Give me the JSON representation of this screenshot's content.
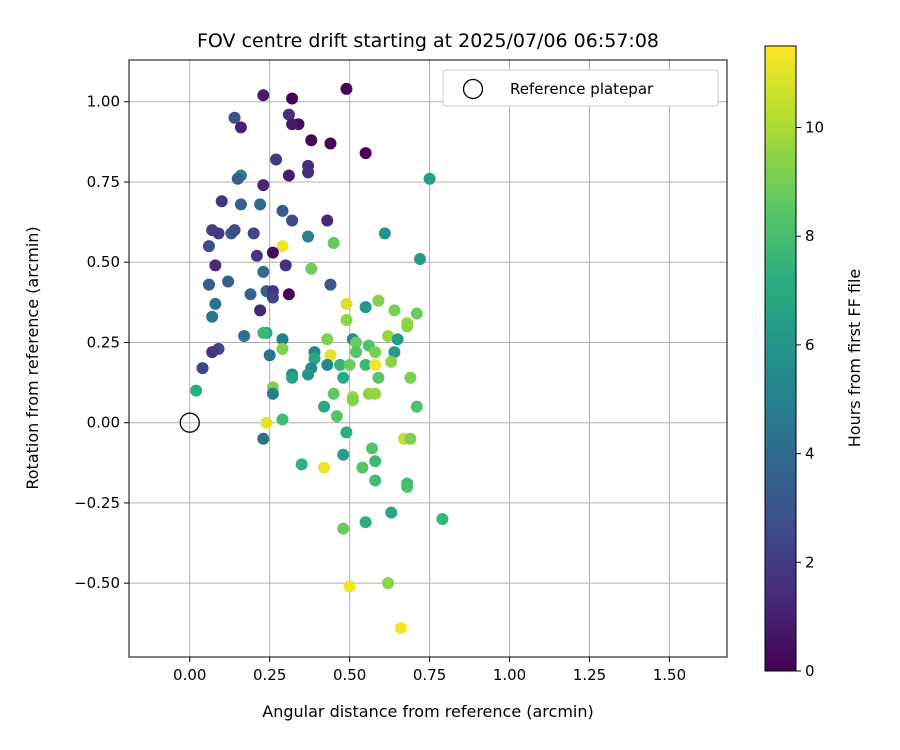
{
  "chart_data": {
    "type": "scatter",
    "title": "FOV centre drift starting at 2025/07/06 06:57:08",
    "xlabel": "Angular distance from reference (arcmin)",
    "ylabel": "Rotation from reference (arcmin)",
    "xlim": [
      -0.19,
      1.68
    ],
    "ylim": [
      -0.73,
      1.13
    ],
    "xticks": [
      0.0,
      0.25,
      0.5,
      0.75,
      1.0,
      1.25,
      1.5
    ],
    "xtick_labels": [
      "0.00",
      "0.25",
      "0.50",
      "0.75",
      "1.00",
      "1.25",
      "1.50"
    ],
    "yticks": [
      -0.5,
      -0.25,
      0.0,
      0.25,
      0.5,
      0.75,
      1.0
    ],
    "ytick_labels": [
      "−0.50",
      "−0.25",
      "0.00",
      "0.25",
      "0.50",
      "0.75",
      "1.00"
    ],
    "grid": true,
    "colormap": "viridis",
    "colorbar": {
      "label": "Hours from first FF file",
      "range": [
        0,
        11.5
      ],
      "ticks": [
        0,
        2,
        4,
        6,
        8,
        10
      ],
      "tick_labels": [
        "0",
        "2",
        "4",
        "6",
        "8",
        "10"
      ]
    },
    "legend": {
      "position": "top-right",
      "entries": [
        "Reference platepar"
      ]
    },
    "reference_point": {
      "x": 0.0,
      "y": 0.0,
      "label": "Reference platepar"
    },
    "points": [
      {
        "x": 0.23,
        "y": 1.02,
        "c": 0.9
      },
      {
        "x": 0.32,
        "y": 1.01,
        "c": 0.1
      },
      {
        "x": 0.49,
        "y": 1.04,
        "c": 0.2
      },
      {
        "x": 0.14,
        "y": 0.95,
        "c": 2.8
      },
      {
        "x": 0.31,
        "y": 0.96,
        "c": 1.6
      },
      {
        "x": 0.34,
        "y": 0.93,
        "c": 0.4
      },
      {
        "x": 0.32,
        "y": 0.93,
        "c": 0.8
      },
      {
        "x": 0.16,
        "y": 0.92,
        "c": 1.1
      },
      {
        "x": 0.38,
        "y": 0.88,
        "c": 0.2
      },
      {
        "x": 0.44,
        "y": 0.87,
        "c": 0.1
      },
      {
        "x": 0.55,
        "y": 0.84,
        "c": 0.1
      },
      {
        "x": 0.27,
        "y": 0.82,
        "c": 2.0
      },
      {
        "x": 0.37,
        "y": 0.8,
        "c": 1.4
      },
      {
        "x": 0.37,
        "y": 0.78,
        "c": 1.5
      },
      {
        "x": 0.16,
        "y": 0.77,
        "c": 5.2
      },
      {
        "x": 0.15,
        "y": 0.76,
        "c": 3.4
      },
      {
        "x": 0.31,
        "y": 0.77,
        "c": 0.9
      },
      {
        "x": 0.23,
        "y": 0.74,
        "c": 1.2
      },
      {
        "x": 0.75,
        "y": 0.76,
        "c": 6.5
      },
      {
        "x": 0.1,
        "y": 0.69,
        "c": 1.7
      },
      {
        "x": 0.16,
        "y": 0.68,
        "c": 3.6
      },
      {
        "x": 0.22,
        "y": 0.68,
        "c": 3.9
      },
      {
        "x": 0.29,
        "y": 0.66,
        "c": 3.2
      },
      {
        "x": 0.32,
        "y": 0.63,
        "c": 2.6
      },
      {
        "x": 0.43,
        "y": 0.63,
        "c": 1.3
      },
      {
        "x": 0.07,
        "y": 0.6,
        "c": 2.2
      },
      {
        "x": 0.09,
        "y": 0.59,
        "c": 2.0
      },
      {
        "x": 0.13,
        "y": 0.59,
        "c": 3.1
      },
      {
        "x": 0.14,
        "y": 0.6,
        "c": 2.6
      },
      {
        "x": 0.2,
        "y": 0.59,
        "c": 2.4
      },
      {
        "x": 0.37,
        "y": 0.58,
        "c": 4.9
      },
      {
        "x": 0.45,
        "y": 0.56,
        "c": 8.7
      },
      {
        "x": 0.61,
        "y": 0.59,
        "c": 5.9
      },
      {
        "x": 0.06,
        "y": 0.55,
        "c": 2.7
      },
      {
        "x": 0.29,
        "y": 0.55,
        "c": 11.3
      },
      {
        "x": 0.26,
        "y": 0.53,
        "c": 0.3
      },
      {
        "x": 0.21,
        "y": 0.52,
        "c": 1.8
      },
      {
        "x": 0.3,
        "y": 0.49,
        "c": 1.5
      },
      {
        "x": 0.08,
        "y": 0.49,
        "c": 1.4
      },
      {
        "x": 0.23,
        "y": 0.47,
        "c": 4.1
      },
      {
        "x": 0.38,
        "y": 0.48,
        "c": 8.9
      },
      {
        "x": 0.72,
        "y": 0.51,
        "c": 6.3
      },
      {
        "x": 0.12,
        "y": 0.44,
        "c": 3.4
      },
      {
        "x": 0.06,
        "y": 0.43,
        "c": 3.4
      },
      {
        "x": 0.44,
        "y": 0.43,
        "c": 3.1
      },
      {
        "x": 0.24,
        "y": 0.41,
        "c": 3.5
      },
      {
        "x": 0.26,
        "y": 0.41,
        "c": 1.8
      },
      {
        "x": 0.26,
        "y": 0.39,
        "c": 2.2
      },
      {
        "x": 0.31,
        "y": 0.4,
        "c": 0.2
      },
      {
        "x": 0.19,
        "y": 0.4,
        "c": 3.7
      },
      {
        "x": 0.49,
        "y": 0.37,
        "c": 10.8
      },
      {
        "x": 0.59,
        "y": 0.38,
        "c": 9.3
      },
      {
        "x": 0.08,
        "y": 0.37,
        "c": 4.3
      },
      {
        "x": 0.22,
        "y": 0.35,
        "c": 1.2
      },
      {
        "x": 0.55,
        "y": 0.36,
        "c": 6.2
      },
      {
        "x": 0.64,
        "y": 0.35,
        "c": 9.1
      },
      {
        "x": 0.71,
        "y": 0.34,
        "c": 8.8
      },
      {
        "x": 0.07,
        "y": 0.33,
        "c": 4.5
      },
      {
        "x": 0.49,
        "y": 0.32,
        "c": 9.5
      },
      {
        "x": 0.68,
        "y": 0.31,
        "c": 9.6
      },
      {
        "x": 0.68,
        "y": 0.3,
        "c": 9.4
      },
      {
        "x": 0.17,
        "y": 0.27,
        "c": 4.4
      },
      {
        "x": 0.24,
        "y": 0.28,
        "c": 6.8
      },
      {
        "x": 0.23,
        "y": 0.28,
        "c": 7.7
      },
      {
        "x": 0.29,
        "y": 0.26,
        "c": 5.0
      },
      {
        "x": 0.43,
        "y": 0.26,
        "c": 9.2
      },
      {
        "x": 0.51,
        "y": 0.26,
        "c": 5.4
      },
      {
        "x": 0.52,
        "y": 0.25,
        "c": 8.8
      },
      {
        "x": 0.62,
        "y": 0.27,
        "c": 9.7
      },
      {
        "x": 0.65,
        "y": 0.26,
        "c": 6.3
      },
      {
        "x": 0.56,
        "y": 0.24,
        "c": 8.2
      },
      {
        "x": 0.29,
        "y": 0.23,
        "c": 9.3
      },
      {
        "x": 0.52,
        "y": 0.22,
        "c": 8.4
      },
      {
        "x": 0.58,
        "y": 0.22,
        "c": 9.1
      },
      {
        "x": 0.64,
        "y": 0.22,
        "c": 6.3
      },
      {
        "x": 0.09,
        "y": 0.23,
        "c": 2.5
      },
      {
        "x": 0.07,
        "y": 0.22,
        "c": 1.8
      },
      {
        "x": 0.25,
        "y": 0.21,
        "c": 4.2
      },
      {
        "x": 0.39,
        "y": 0.22,
        "c": 5.4
      },
      {
        "x": 0.39,
        "y": 0.2,
        "c": 6.8
      },
      {
        "x": 0.44,
        "y": 0.21,
        "c": 11.1
      },
      {
        "x": 0.47,
        "y": 0.18,
        "c": 7.5
      },
      {
        "x": 0.5,
        "y": 0.18,
        "c": 8.9
      },
      {
        "x": 0.55,
        "y": 0.18,
        "c": 7.7
      },
      {
        "x": 0.43,
        "y": 0.18,
        "c": 5.4
      },
      {
        "x": 0.58,
        "y": 0.18,
        "c": 11.3
      },
      {
        "x": 0.63,
        "y": 0.19,
        "c": 9.4
      },
      {
        "x": 0.04,
        "y": 0.17,
        "c": 2.4
      },
      {
        "x": 0.38,
        "y": 0.17,
        "c": 5.6
      },
      {
        "x": 0.37,
        "y": 0.15,
        "c": 5.9
      },
      {
        "x": 0.32,
        "y": 0.15,
        "c": 5.1
      },
      {
        "x": 0.32,
        "y": 0.14,
        "c": 6.6
      },
      {
        "x": 0.48,
        "y": 0.14,
        "c": 7.0
      },
      {
        "x": 0.59,
        "y": 0.14,
        "c": 8.4
      },
      {
        "x": 0.69,
        "y": 0.14,
        "c": 9.1
      },
      {
        "x": 0.26,
        "y": 0.11,
        "c": 9.2
      },
      {
        "x": 0.26,
        "y": 0.09,
        "c": 4.8
      },
      {
        "x": 0.02,
        "y": 0.1,
        "c": 7.2
      },
      {
        "x": 0.45,
        "y": 0.09,
        "c": 8.6
      },
      {
        "x": 0.56,
        "y": 0.09,
        "c": 9.5
      },
      {
        "x": 0.58,
        "y": 0.09,
        "c": 9.6
      },
      {
        "x": 0.51,
        "y": 0.08,
        "c": 9.9
      },
      {
        "x": 0.51,
        "y": 0.07,
        "c": 9.2
      },
      {
        "x": 0.42,
        "y": 0.05,
        "c": 7.0
      },
      {
        "x": 0.71,
        "y": 0.05,
        "c": 8.2
      },
      {
        "x": 0.46,
        "y": 0.02,
        "c": 8.3
      },
      {
        "x": 0.29,
        "y": 0.01,
        "c": 7.9
      },
      {
        "x": 0.24,
        "y": 0.0,
        "c": 11.0
      },
      {
        "x": 0.49,
        "y": -0.03,
        "c": 7.2
      },
      {
        "x": 0.67,
        "y": -0.05,
        "c": 10.4
      },
      {
        "x": 0.69,
        "y": -0.05,
        "c": 9.2
      },
      {
        "x": 0.23,
        "y": -0.05,
        "c": 4.3
      },
      {
        "x": 0.57,
        "y": -0.08,
        "c": 8.3
      },
      {
        "x": 0.48,
        "y": -0.1,
        "c": 6.5
      },
      {
        "x": 0.58,
        "y": -0.12,
        "c": 7.8
      },
      {
        "x": 0.35,
        "y": -0.13,
        "c": 7.4
      },
      {
        "x": 0.42,
        "y": -0.14,
        "c": 11.2
      },
      {
        "x": 0.54,
        "y": -0.14,
        "c": 8.4
      },
      {
        "x": 0.58,
        "y": -0.18,
        "c": 7.9
      },
      {
        "x": 0.68,
        "y": -0.19,
        "c": 7.8
      },
      {
        "x": 0.68,
        "y": -0.2,
        "c": 8.1
      },
      {
        "x": 0.63,
        "y": -0.28,
        "c": 6.8
      },
      {
        "x": 0.79,
        "y": -0.3,
        "c": 7.6
      },
      {
        "x": 0.55,
        "y": -0.31,
        "c": 7.2
      },
      {
        "x": 0.48,
        "y": -0.33,
        "c": 8.8
      },
      {
        "x": 0.62,
        "y": -0.5,
        "c": 9.4
      },
      {
        "x": 0.5,
        "y": -0.51,
        "c": 11.3
      },
      {
        "x": 0.66,
        "y": -0.64,
        "c": 11.3
      }
    ]
  }
}
